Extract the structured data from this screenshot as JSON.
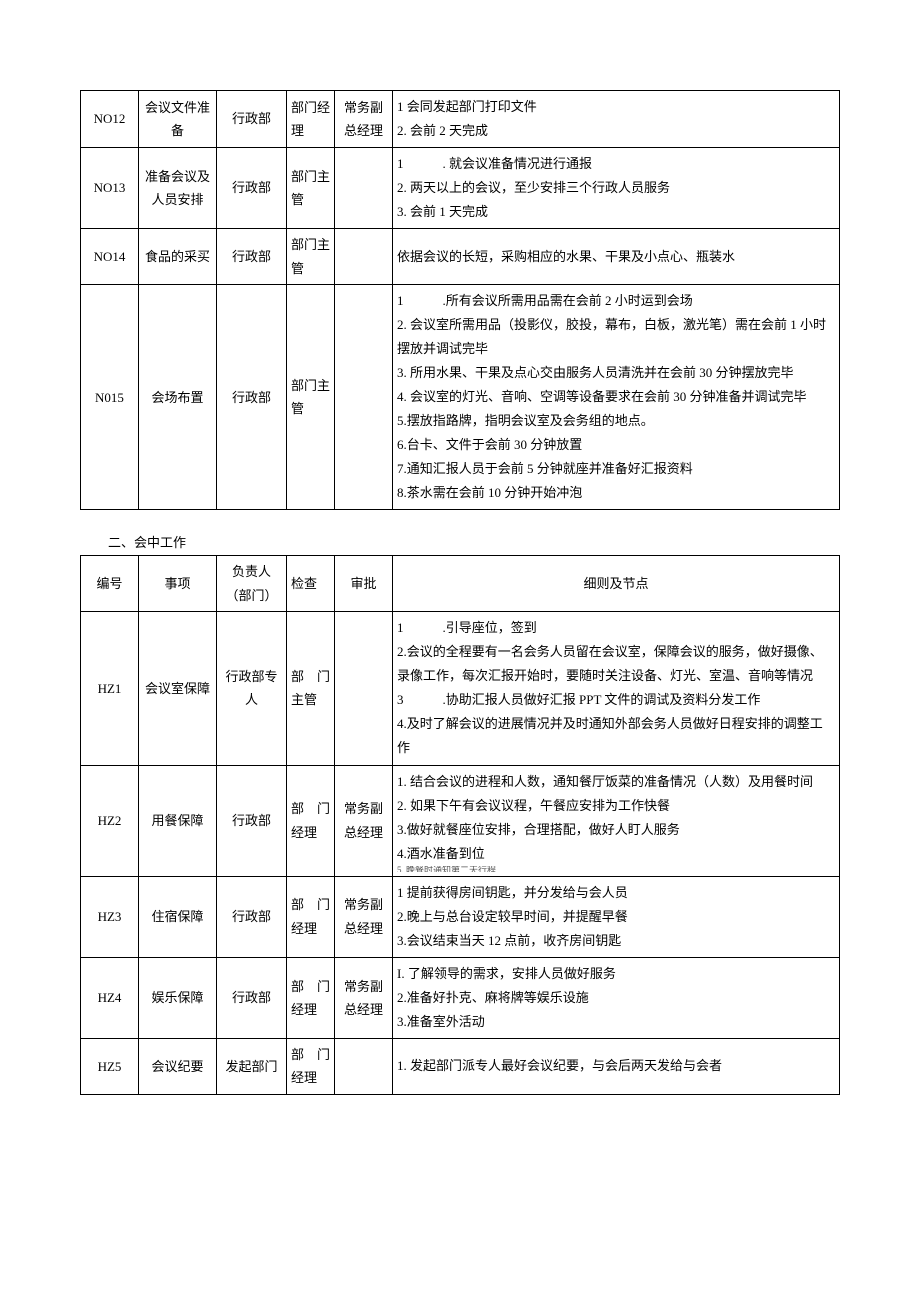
{
  "table1": {
    "columns": {
      "no_width": 58,
      "item_width": 78,
      "resp_width": 70,
      "check_width": 48,
      "approve_width": 58
    },
    "rows": [
      {
        "no": "NO12",
        "item": "会议文件准备",
        "resp": "行政部",
        "check": "部门经理",
        "approve": "常务副总经理",
        "details": [
          "1 会同发起部门打印文件",
          "2. 会前 2 天完成"
        ]
      },
      {
        "no": "NO13",
        "item": "准备会议及人员安排",
        "resp": "行政部",
        "check": "部门主管",
        "approve": "",
        "details": [
          "1　　　. 就会议准备情况进行通报",
          "2. 两天以上的会议，至少安排三个行政人员服务",
          "3. 会前 1 天完成"
        ]
      },
      {
        "no": "NO14",
        "item": "食品的采买",
        "resp": "行政部",
        "check": "部门主管",
        "approve": "",
        "details": [
          "依据会议的长短，采购相应的水果、干果及小点心、瓶装水"
        ]
      },
      {
        "no": "N015",
        "item": "会场布置",
        "resp": "行政部",
        "check": "部门主管",
        "approve": "",
        "details": [
          "1　　　.所有会议所需用品需在会前 2 小时运到会场",
          "2. 会议室所需用品（投影仪，胶投，幕布，白板，激光笔）需在会前 1 小时摆放并调试完毕",
          "3. 所用水果、干果及点心交由服务人员清洗并在会前 30 分钟摆放完毕",
          "4. 会议室的灯光、音响、空调等设备要求在会前 30 分钟准备并调试完毕",
          "5.摆放指路牌，指明会议室及会务组的地点。",
          "6.台卡、文件于会前 30 分钟放置",
          "7.通知汇报人员于会前 5 分钟就座并准备好汇报资料",
          "8.茶水需在会前 10 分钟开始冲泡"
        ]
      }
    ]
  },
  "section2_title": "二、会中工作",
  "table2": {
    "headers": {
      "no": "编号",
      "item": "事项",
      "resp": "负责人（部门）",
      "check": "检查",
      "approve": "审批",
      "detail": "细则及节点"
    },
    "rows": [
      {
        "no": "HZ1",
        "item": "会议室保障",
        "resp": "行政部专人",
        "check": "部　门主管",
        "approve": "",
        "details": [
          "1　　　.引导座位，签到",
          "2.会议的全程要有一名会务人员留在会议室，保障会议的服务，做好摄像、录像工作，每次汇报开始时，要随时关注设备、灯光、室温、音响等情况",
          "3　　　.协助汇报人员做好汇报 PPT 文件的调试及资料分发工作",
          "4.及时了解会议的进展情况并及时通知外部会务人员做好日程安排的调整工作"
        ]
      },
      {
        "no": "HZ2",
        "item": "用餐保障",
        "resp": "行政部",
        "check": "部　门经理",
        "approve": "常务副总经理",
        "details": [
          "1. 结合会议的进程和人数，通知餐厅饭菜的准备情况（人数）及用餐时间",
          "2. 如果下午有会议议程，午餐应安排为工作快餐",
          "3.做好就餐座位安排，合理搭配，做好人盯人服务",
          "4.酒水准备到位"
        ],
        "overflow": "5. 晚餐时通知第二天行程"
      },
      {
        "no": "HZ3",
        "item": "住宿保障",
        "resp": "行政部",
        "check": "部　门经理",
        "approve": "常务副总经理",
        "details": [
          "1 提前获得房间钥匙，并分发给与会人员",
          "2.晚上与总台设定较早时间，并提醒早餐",
          "3.会议结束当天 12 点前，收齐房间钥匙"
        ]
      },
      {
        "no": "HZ4",
        "item": "娱乐保障",
        "resp": "行政部",
        "check": "部　门经理",
        "approve": "常务副总经理",
        "details": [
          "I. 了解领导的需求，安排人员做好服务",
          "2.准备好扑克、麻将牌等娱乐设施",
          "3.准备室外活动"
        ]
      },
      {
        "no": "HZ5",
        "item": "会议纪要",
        "resp": "发起部门",
        "check": "部　门经理",
        "approve": "",
        "details": [
          "1. 发起部门派专人最好会议纪要，与会后两天发给与会者"
        ]
      }
    ]
  }
}
